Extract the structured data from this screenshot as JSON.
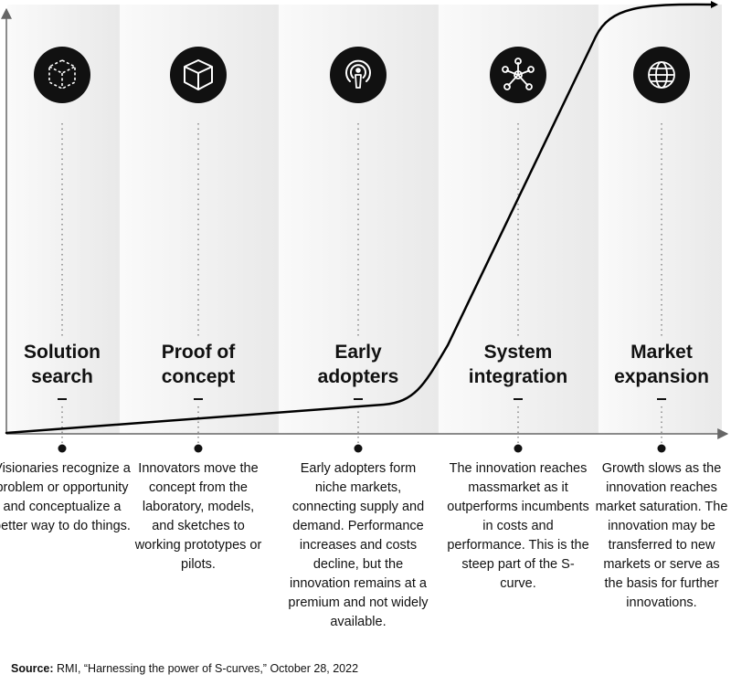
{
  "stages": [
    {
      "title_line1": "Solution",
      "title_line2": "search",
      "icon": "dashed-cube-icon",
      "description": "Visionaries recognize a problem or opportunity and conceptualize a better way to do things."
    },
    {
      "title_line1": "Proof of",
      "title_line2": "concept",
      "icon": "cube-icon",
      "description": "Innovators move the concept from the laboratory, models, and sketches to working prototypes or pilots."
    },
    {
      "title_line1": "Early",
      "title_line2": "adopters",
      "icon": "broadcast-person-icon",
      "description": "Early adopters form niche markets, connecting supply and demand. Performance increases and costs decline, but the innovation remains at a premium and not widely available."
    },
    {
      "title_line1": "System",
      "title_line2": "integration",
      "icon": "network-nodes-icon",
      "description": "The innovation reaches massmarket as it outperforms incumbents in costs and performance. This is the steep part of the S-curve."
    },
    {
      "title_line1": "Market",
      "title_line2": "expansion",
      "icon": "globe-icon",
      "description": "Growth slows as the innovation reaches market saturation. The innovation may be transferred to new markets or serve as the basis for further innovations."
    }
  ],
  "source": {
    "label": "Source:",
    "text": "RMI, “Harnessing the power of S-curves,” October 28, 2022"
  },
  "colors": {
    "panel_light": "#f6f6f6",
    "panel_gradient_end": "#ececec",
    "curve": "#000000",
    "axis": "#666666",
    "icon_bg": "#111111"
  }
}
